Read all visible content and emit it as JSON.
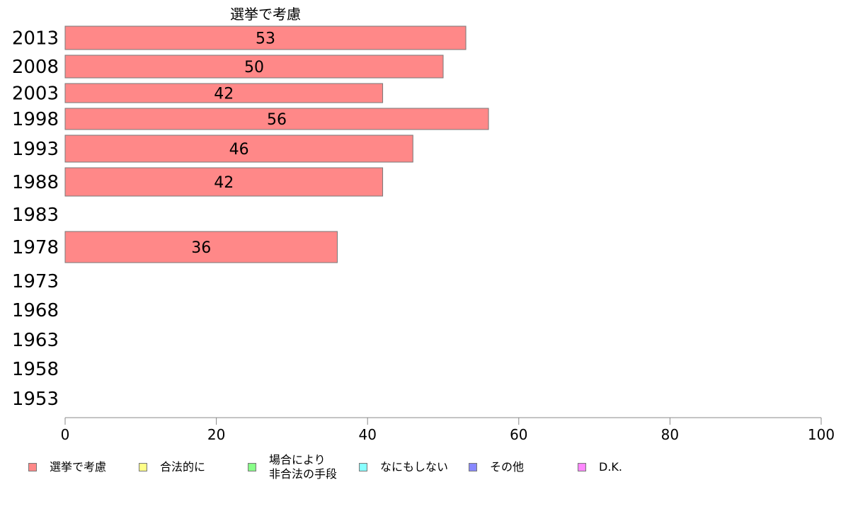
{
  "chart_data": {
    "type": "bar",
    "orientation": "horizontal",
    "title": "",
    "series_header": "選挙で考慮",
    "categories": [
      "2013",
      "2008",
      "2003",
      "1998",
      "1993",
      "1988",
      "1983",
      "1978",
      "1973",
      "1968",
      "1963",
      "1958",
      "1953"
    ],
    "series": [
      {
        "name": "選挙で考慮",
        "values": [
          53,
          50,
          42,
          56,
          46,
          42,
          null,
          36,
          null,
          null,
          null,
          null,
          null
        ],
        "color": "#ff8888"
      }
    ],
    "xlim": [
      0,
      100
    ],
    "xticks": [
      "0",
      "20",
      "40",
      "60",
      "80",
      "100"
    ],
    "grid": false,
    "legend_position": "bottom",
    "legend": [
      {
        "label": "選挙で考慮",
        "color": "#ff8888"
      },
      {
        "label": "合法的に",
        "color": "#ffff88"
      },
      {
        "label": "場合により\n非合法の手段",
        "color": "#88ff88"
      },
      {
        "label": "なにもしない",
        "color": "#88ffff"
      },
      {
        "label": "その他",
        "color": "#8888ff"
      },
      {
        "label": "D.K.",
        "color": "#ff88ff"
      }
    ]
  }
}
